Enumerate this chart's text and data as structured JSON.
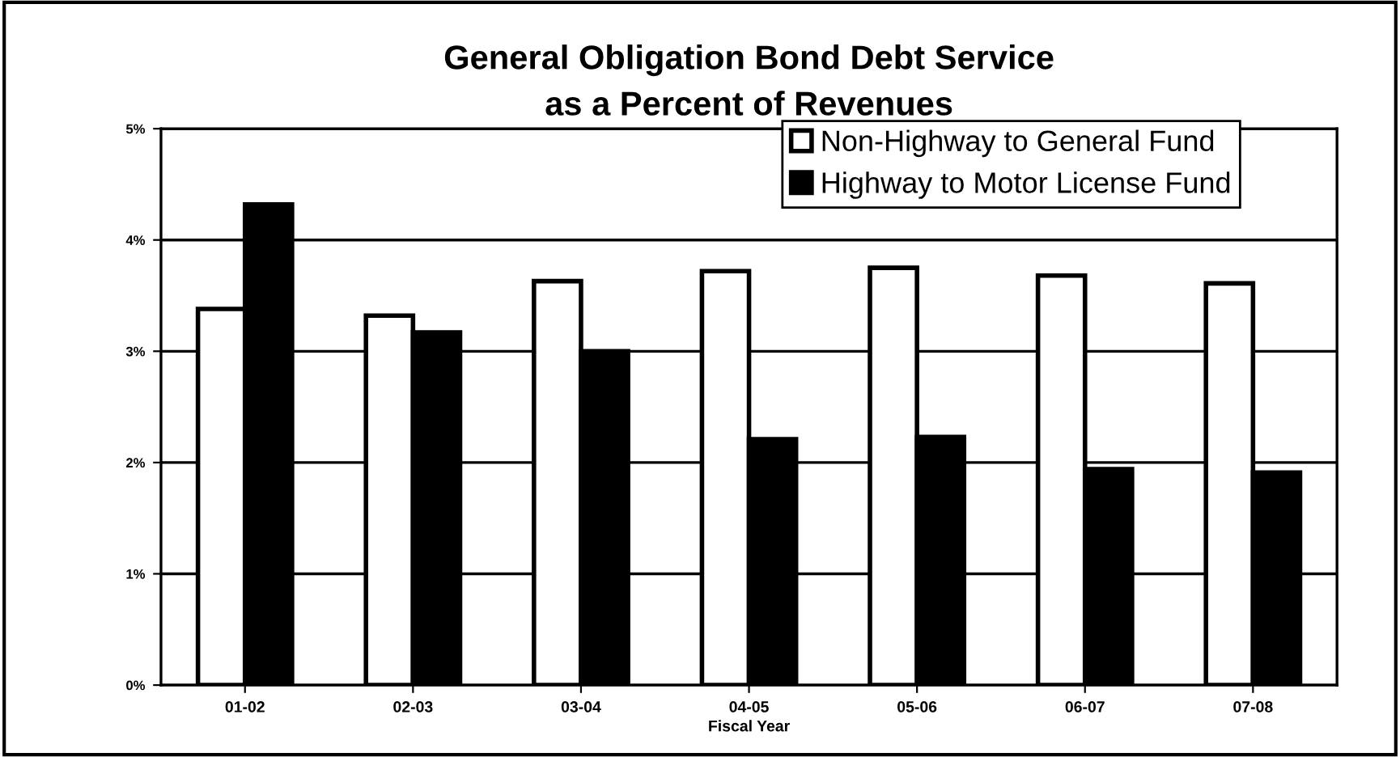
{
  "chart_data": {
    "type": "bar",
    "title": "General Obligation Bond Debt Service\nas a Percent of Revenues",
    "xlabel": "Fiscal Year",
    "categories": [
      "01-02",
      "02-03",
      "03-04",
      "04-05",
      "05-06",
      "06-07",
      "07-08"
    ],
    "series": [
      {
        "name": "Non-Highway to General Fund",
        "color": "#ffffff",
        "values": [
          3.38,
          3.32,
          3.63,
          3.72,
          3.75,
          3.68,
          3.61
        ]
      },
      {
        "name": "Highway to Motor License Fund",
        "color": "#000000",
        "values": [
          4.32,
          3.17,
          3.0,
          2.21,
          2.23,
          1.94,
          1.91
        ]
      }
    ],
    "ylim": [
      0,
      5
    ],
    "yticks": [
      {
        "value": 0,
        "label": "0%"
      },
      {
        "value": 1,
        "label": "1%"
      },
      {
        "value": 2,
        "label": "2%"
      },
      {
        "value": 3,
        "label": "3%"
      },
      {
        "value": 4,
        "label": "4%"
      },
      {
        "value": 5,
        "label": "5%"
      }
    ],
    "grid": "y",
    "legend": "top right"
  }
}
